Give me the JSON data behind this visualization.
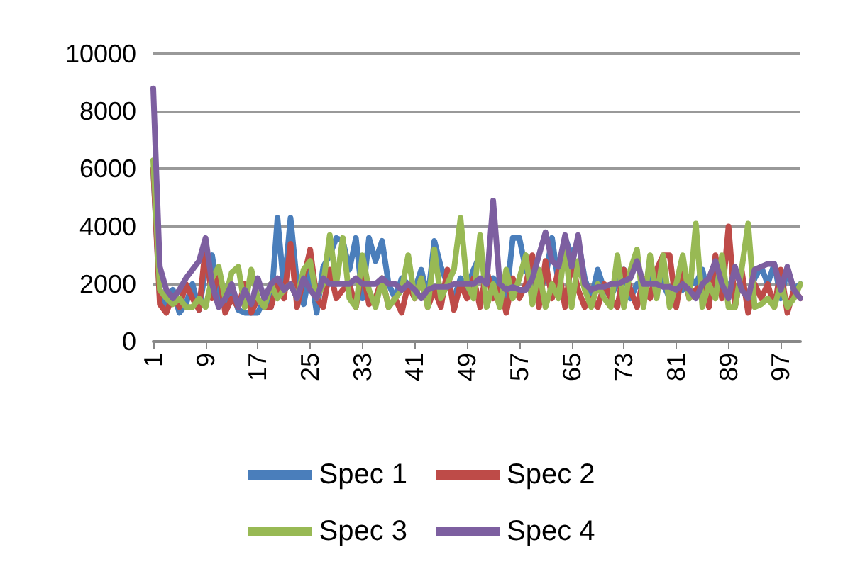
{
  "chart_data": {
    "type": "line",
    "categories": [
      "1",
      null,
      null,
      null,
      null,
      null,
      null,
      null,
      "9",
      null,
      null,
      null,
      null,
      null,
      null,
      null,
      "17",
      null,
      null,
      null,
      null,
      null,
      null,
      null,
      "25",
      null,
      null,
      null,
      null,
      null,
      null,
      null,
      "33",
      null,
      null,
      null,
      null,
      null,
      null,
      null,
      "41",
      null,
      null,
      null,
      null,
      null,
      null,
      null,
      "49",
      null,
      null,
      null,
      null,
      null,
      null,
      null,
      "57",
      null,
      null,
      null,
      null,
      null,
      null,
      null,
      "65",
      null,
      null,
      null,
      null,
      null,
      null,
      null,
      "73",
      null,
      null,
      null,
      null,
      null,
      null,
      null,
      "81",
      null,
      null,
      null,
      null,
      null,
      null,
      null,
      "89",
      null,
      null,
      null,
      null,
      null,
      null,
      null,
      "97",
      null,
      null,
      null
    ],
    "series": [
      {
        "name": "Spec 1",
        "color": "#4a7ebb",
        "values": [
          6000,
          1500,
          1200,
          1800,
          1000,
          1300,
          2000,
          1100,
          2500,
          3000,
          1500,
          1200,
          1800,
          1100,
          1000,
          1000,
          1000,
          1500,
          1200,
          4300,
          1800,
          4300,
          2000,
          1300,
          2500,
          1000,
          2600,
          3000,
          3600,
          3500,
          2500,
          3600,
          1500,
          3600,
          2800,
          3500,
          2000,
          1500,
          2200,
          2000,
          1800,
          2500,
          1500,
          3500,
          2600,
          2000,
          1500,
          2200,
          1800,
          2500,
          3000,
          2000,
          2200,
          2000,
          1500,
          3600,
          3600,
          2500,
          2000,
          1800,
          2200,
          3600,
          2000,
          3600,
          3000,
          3500,
          2200,
          1500,
          2500,
          1800,
          1600,
          2000,
          2500,
          1500,
          2000,
          1800,
          2200,
          2500,
          2000,
          1500,
          2000,
          1800,
          2200,
          2000,
          2500,
          1500,
          2200,
          2000,
          1800,
          2500,
          2000,
          1500,
          2200,
          2600,
          2000,
          2700,
          1500,
          2500,
          1800,
          2000
        ]
      },
      {
        "name": "Spec 2",
        "color": "#be4b48",
        "values": [
          6000,
          1300,
          1000,
          1600,
          1200,
          2000,
          1500,
          1100,
          3300,
          1500,
          2500,
          1000,
          1500,
          1200,
          2000,
          1000,
          1500,
          1200,
          1200,
          2000,
          1500,
          3400,
          1200,
          2200,
          3200,
          1500,
          1200,
          2500,
          1500,
          1800,
          2000,
          1200,
          2500,
          1300,
          1500,
          2200,
          1200,
          1500,
          1000,
          2000,
          1500,
          2200,
          1200,
          1800,
          1200,
          2500,
          1100,
          2000,
          1500,
          2200,
          1200,
          2500,
          1500,
          2000,
          1000,
          2200,
          1500,
          2000,
          3000,
          1200,
          2800,
          1500,
          2500,
          1200,
          2800,
          1800,
          1200,
          1500,
          1200,
          2000,
          1500,
          1200,
          2500,
          1800,
          1200,
          2200,
          1500,
          2500,
          3000,
          3000,
          1200,
          2500,
          1500,
          1800,
          2000,
          1200,
          3000,
          1500,
          4000,
          1200,
          2500,
          1000,
          2000,
          1500,
          2000,
          1200,
          2500,
          1000,
          1800,
          1500
        ]
      },
      {
        "name": "Spec 3",
        "color": "#98b954",
        "values": [
          6300,
          1800,
          1500,
          1300,
          1500,
          1200,
          1200,
          1500,
          1200,
          2200,
          2600,
          1500,
          2400,
          2600,
          1200,
          2500,
          1500,
          1200,
          2000,
          1500,
          1800,
          2000,
          1500,
          2500,
          2800,
          1500,
          2000,
          3700,
          2000,
          3600,
          1500,
          1200,
          3000,
          1800,
          1200,
          2200,
          1200,
          1500,
          1800,
          3000,
          1500,
          2200,
          1200,
          3200,
          1500,
          2000,
          2500,
          4300,
          2000,
          1500,
          3700,
          1200,
          2000,
          1200,
          2500,
          1500,
          2200,
          3000,
          1300,
          2500,
          1200,
          2000,
          1500,
          3300,
          1200,
          2800,
          1800,
          1200,
          2000,
          1500,
          1200,
          3000,
          1200,
          2500,
          3200,
          1200,
          3000,
          1500,
          3000,
          1200,
          2000,
          3000,
          1500,
          4100,
          1200,
          2000,
          1500,
          3000,
          1200,
          1200,
          2500,
          4100,
          1200,
          1300,
          1500,
          1200,
          2000,
          1200,
          1500,
          2000
        ]
      },
      {
        "name": "Spec 4",
        "color": "#7d5fa0",
        "values": [
          8800,
          2600,
          1800,
          1500,
          1800,
          2200,
          2500,
          2800,
          3600,
          2000,
          1200,
          1500,
          2000,
          1200,
          1800,
          1300,
          2200,
          1500,
          2000,
          2200,
          1800,
          2000,
          1500,
          2200,
          1800,
          1500,
          2200,
          2000,
          2000,
          2000,
          2000,
          2200,
          2000,
          2000,
          2000,
          2200,
          2000,
          2000,
          1800,
          2000,
          1800,
          1500,
          1800,
          1900,
          1900,
          1900,
          2000,
          2000,
          2000,
          2000,
          2200,
          2000,
          4900,
          2000,
          1800,
          1900,
          1800,
          1800,
          2200,
          3000,
          3800,
          2800,
          2600,
          3700,
          2600,
          3700,
          2000,
          1800,
          1900,
          1900,
          2000,
          2000,
          2100,
          2200,
          2800,
          2000,
          2000,
          2000,
          1900,
          1900,
          1800,
          2000,
          1800,
          1500,
          2000,
          2200,
          2800,
          2000,
          1500,
          2600,
          1800,
          1500,
          2500,
          2600,
          2700,
          2700,
          1800,
          2600,
          1800,
          1500
        ]
      }
    ],
    "ylim": [
      0,
      10000
    ],
    "yticks": [
      0,
      2000,
      4000,
      6000,
      8000,
      10000
    ],
    "grid": "y",
    "legend": "bottom",
    "marker": "none"
  }
}
